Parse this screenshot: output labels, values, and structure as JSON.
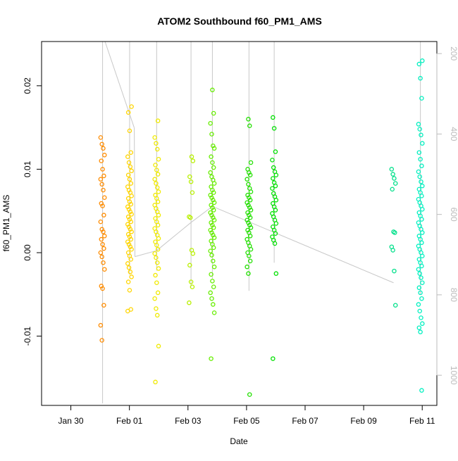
{
  "chart_data": {
    "type": "scatter",
    "title": "ATOM2 Southbound f60_PM1_AMS",
    "xlabel": "Date",
    "ylabel": "f60_PM1_AMS",
    "x_ticks": [
      {
        "date": "2017-01-30",
        "label": "Jan 30"
      },
      {
        "date": "2017-02-01",
        "label": "Feb 01"
      },
      {
        "date": "2017-02-03",
        "label": "Feb 03"
      },
      {
        "date": "2017-02-05",
        "label": "Feb 05"
      },
      {
        "date": "2017-02-07",
        "label": "Feb 07"
      },
      {
        "date": "2017-02-09",
        "label": "Feb 09"
      },
      {
        "date": "2017-02-11",
        "label": "Feb 11"
      }
    ],
    "xlim": [
      "2017-01-29 00:00",
      "2017-02-11 12:00"
    ],
    "ylim": [
      -0.0183,
      0.0253
    ],
    "y_ticks": [
      -0.01,
      0.0,
      0.01,
      0.02
    ],
    "y_tick_labels": [
      "-0.01",
      "0.00",
      "0.01",
      "0.02"
    ],
    "y2_ticks": [
      200,
      400,
      600,
      800,
      1000
    ],
    "y2_tick_labels": [
      "200",
      "400",
      "600",
      "800",
      "1000"
    ],
    "y2lim": [
      1075,
      170
    ],
    "grid": false,
    "legend": "none",
    "colors": {
      "track": "#c8c8c8",
      "axis": "#000000",
      "y2_axis": "#bbbbbb"
    },
    "clusters": [
      {
        "date": "2017-01-31 02:00",
        "color": "#ff8c00",
        "values": [
          0.0138,
          0.013,
          0.0125,
          0.0117,
          0.011,
          0.01,
          0.0092,
          0.0088,
          0.0082,
          0.0075,
          0.0066,
          0.0059,
          0.0056,
          0.0045,
          0.0037,
          0.0028,
          0.0025,
          0.002,
          0.0016,
          0.001,
          0.0005,
          0.0,
          -0.0005,
          -0.0012,
          -0.002,
          -0.004,
          -0.0043,
          -0.0063,
          -0.0087,
          -0.0105
        ]
      },
      {
        "date": "2017-02-01 00:10",
        "color": "#ffd500",
        "values": [
          0.0175,
          0.0168,
          0.0146,
          0.012,
          0.0115,
          0.0108,
          0.0103,
          0.0098,
          0.0093,
          0.0088,
          0.0083,
          0.0079,
          0.0075,
          0.0072,
          0.0068,
          0.0065,
          0.0061,
          0.0058,
          0.0055,
          0.0052,
          0.0049,
          0.0046,
          0.0043,
          0.004,
          0.0037,
          0.0034,
          0.0031,
          0.0028,
          0.0025,
          0.0022,
          0.0019,
          0.0016,
          0.0013,
          0.001,
          0.0007,
          0.0004,
          0.0,
          -0.0004,
          -0.0008,
          -0.0013,
          -0.0018,
          -0.0023,
          -0.0029,
          -0.0035,
          -0.0045,
          -0.0068,
          -0.007
        ]
      },
      {
        "date": "2017-02-01 22:20",
        "color": "#f0ea00",
        "values": [
          0.0158,
          0.0138,
          0.0131,
          0.0124,
          0.0112,
          0.0105,
          0.0099,
          0.0094,
          0.0088,
          0.0083,
          0.0078,
          0.0073,
          0.0069,
          0.0065,
          0.0061,
          0.0057,
          0.0053,
          0.0049,
          0.0045,
          0.0041,
          0.0037,
          0.0033,
          0.0029,
          0.0025,
          0.0021,
          0.0017,
          0.0013,
          0.0009,
          0.0004,
          -0.0001,
          -0.0006,
          -0.0012,
          -0.0019,
          -0.0027,
          -0.0036,
          -0.0048,
          -0.0055,
          -0.0067,
          -0.0075,
          -0.0112,
          -0.0155
        ]
      },
      {
        "date": "2017-02-03 02:30",
        "color": "#b8f000",
        "values": [
          0.0115,
          0.011,
          0.0091,
          0.0085,
          0.0072,
          0.0043,
          0.0042,
          0.0003,
          -0.0001,
          -0.0015,
          -0.0035,
          -0.0041,
          -0.006
        ]
      },
      {
        "date": "2017-02-03 20:00",
        "color": "#66ee00",
        "values": [
          0.0195,
          0.0167,
          0.0155,
          0.0142,
          0.0128,
          0.0125,
          0.0115,
          0.0108,
          0.0102,
          0.0096,
          0.0091,
          0.0087,
          0.0083,
          0.0079,
          0.0075,
          0.0072,
          0.0069,
          0.0066,
          0.0063,
          0.006,
          0.0057,
          0.0054,
          0.0051,
          0.0048,
          0.0045,
          0.0042,
          0.0039,
          0.0036,
          0.0033,
          0.003,
          0.0027,
          0.0024,
          0.0021,
          0.0018,
          0.0014,
          0.001,
          0.0006,
          0.0002,
          -0.0003,
          -0.001,
          -0.0017,
          -0.0026,
          -0.0034,
          -0.0041,
          -0.0048,
          -0.0055,
          -0.0062,
          -0.0072,
          -0.0127
        ]
      },
      {
        "date": "2017-02-05 02:00",
        "color": "#22e000",
        "values": [
          0.016,
          0.0152,
          0.0108,
          0.01,
          0.0096,
          0.0093,
          0.0088,
          0.0082,
          0.0077,
          0.0073,
          0.0069,
          0.0066,
          0.0063,
          0.006,
          0.0057,
          0.0054,
          0.0051,
          0.0048,
          0.0045,
          0.0042,
          0.0039,
          0.0036,
          0.0033,
          0.003,
          0.0027,
          0.0024,
          0.002,
          0.0016,
          0.0012,
          0.0008,
          0.0004,
          0.0,
          -0.0004,
          -0.001,
          -0.0017,
          -0.0025,
          -0.017
        ]
      },
      {
        "date": "2017-02-05 22:40",
        "color": "#00e000",
        "values": [
          0.0162,
          0.0149,
          0.0121,
          0.0111,
          0.0102,
          0.0097,
          0.0093,
          0.0089,
          0.0084,
          0.008,
          0.0077,
          0.0071,
          0.0067,
          0.0063,
          0.0059,
          0.0055,
          0.0051,
          0.0047,
          0.0043,
          0.0039,
          0.0035,
          0.0031,
          0.0027,
          0.0023,
          0.0019,
          0.0015,
          0.0011,
          -0.0025,
          -0.0127
        ]
      },
      {
        "date": "2017-02-10 00:30",
        "color": "#00e08a",
        "values": [
          0.01,
          0.0094,
          0.0089,
          0.0083,
          0.0076,
          0.0025,
          0.0024,
          0.0007,
          0.0003,
          -0.0022,
          -0.0063
        ]
      },
      {
        "date": "2017-02-10 22:30",
        "color": "#00f0c0",
        "values": [
          0.023,
          0.0226,
          0.0209,
          0.0185,
          0.0154,
          0.0148,
          0.0141,
          0.0131,
          0.012,
          0.0112,
          0.0104,
          0.0097,
          0.0091,
          0.0085,
          0.008,
          0.0076,
          0.0072,
          0.0068,
          0.0064,
          0.006,
          0.0056,
          0.0052,
          0.0048,
          0.0044,
          0.004,
          0.0036,
          0.0032,
          0.0028,
          0.0024,
          0.002,
          0.0016,
          0.0012,
          0.0008,
          0.0004,
          0.0,
          -0.0004,
          -0.0008,
          -0.0012,
          -0.0016,
          -0.002,
          -0.0025,
          -0.003,
          -0.0036,
          -0.0042,
          -0.0048,
          -0.0055,
          -0.0062,
          -0.007,
          -0.0078,
          -0.0085,
          -0.009,
          -0.0095,
          -0.0165
        ]
      }
    ],
    "altitude_track": [
      {
        "date": "2017-01-31 02:00",
        "from": 170,
        "to": 1070
      },
      {
        "date": "2017-01-31 04:00",
        "y2": 170
      },
      {
        "date": "2017-02-01 04:00",
        "y2": 385
      },
      {
        "date": "2017-02-01 04:30",
        "y2": 705
      },
      {
        "date": "2017-02-01 22:20",
        "y2": 690
      },
      {
        "date": "2017-02-01 00:10",
        "from": 170,
        "to": 750
      },
      {
        "date": "2017-02-01 22:20",
        "from": 170,
        "to": 740
      },
      {
        "date": "2017-02-03 02:30",
        "from": 170,
        "to": 780
      },
      {
        "date": "2017-02-03 02:30",
        "y2": 620
      },
      {
        "date": "2017-02-03 20:00",
        "y2": 580
      },
      {
        "date": "2017-02-03 20:00",
        "from": 170,
        "to": 760
      },
      {
        "date": "2017-02-05 02:00",
        "from": 170,
        "to": 790
      },
      {
        "date": "2017-02-05 22:40",
        "from": 170,
        "to": 720
      },
      {
        "date": "2017-02-10 22:30",
        "from": 170,
        "to": 800
      },
      {
        "date": "2017-02-10 00:30",
        "y2": 770
      }
    ]
  }
}
